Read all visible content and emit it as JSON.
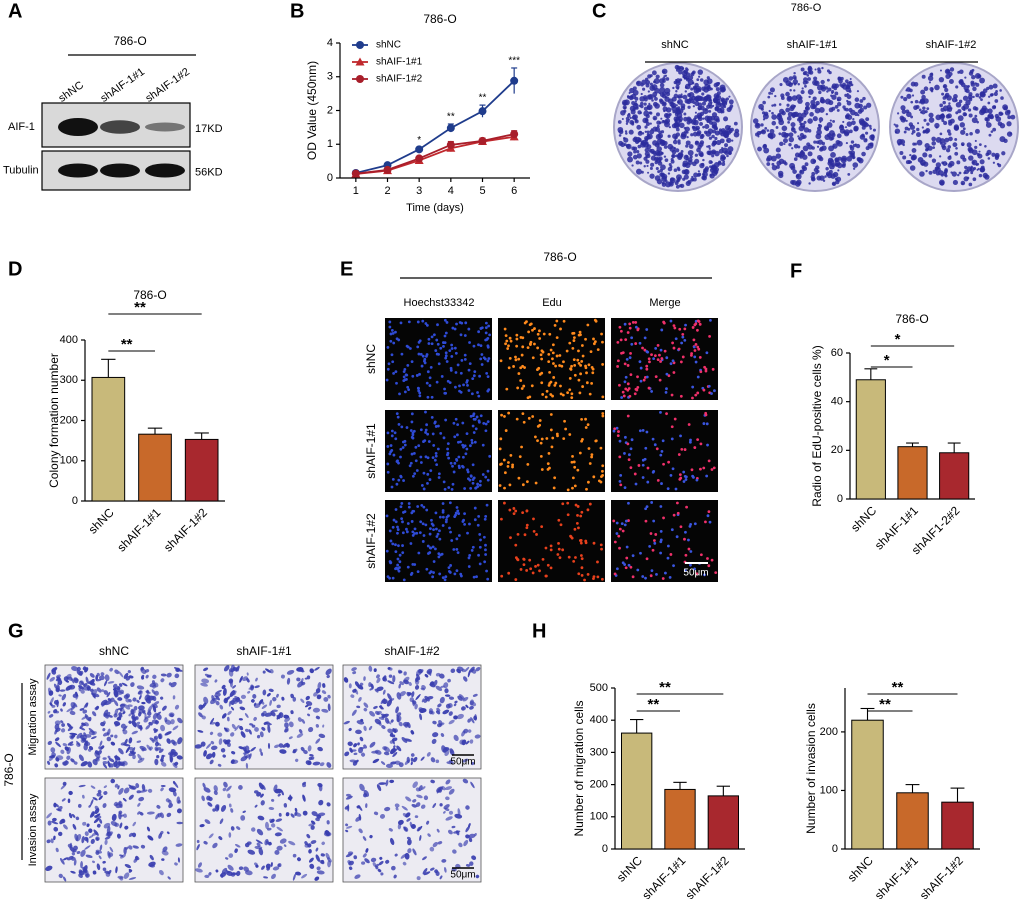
{
  "panel_labels": [
    "A",
    "B",
    "C",
    "D",
    "E",
    "F",
    "G",
    "H"
  ],
  "blot": {
    "cell_line": "786-O",
    "lanes": [
      "shNC",
      "shAIF-1#1",
      "shAIF-1#2"
    ],
    "rows": [
      {
        "protein": "AIF-1",
        "size": "17KD"
      },
      {
        "protein": "Tubulin",
        "size": "56KD"
      }
    ]
  },
  "colony": {
    "cell_line": "786-O",
    "groups": [
      "shNC",
      "shAIF-1#1",
      "shAIF-1#2"
    ]
  },
  "edu": {
    "cell_line": "786-O",
    "channels": [
      "Hoechst33342",
      "Edu",
      "Merge"
    ],
    "groups": [
      "shNC",
      "shAIF-1#1",
      "shAIF-1#2"
    ],
    "scale_bar": "50μm"
  },
  "transwell": {
    "cell_line": "786-O",
    "groups": [
      "shNC",
      "shAIF-1#1",
      "shAIF-1#2"
    ],
    "assays": [
      "Migration assay",
      "Invasion assay"
    ],
    "scale_bars": [
      "50μm",
      "50μm"
    ]
  },
  "chart_data": [
    {
      "type": "line",
      "title": "786-O",
      "xlabel": "Time (days)",
      "ylabel": "OD Value (450nm)",
      "x": [
        1,
        2,
        3,
        4,
        5,
        6
      ],
      "xlim": [
        0.5,
        6.5
      ],
      "xticks": [
        1,
        2,
        3,
        4,
        5,
        6
      ],
      "ylim": [
        0,
        4
      ],
      "yticks": [
        0,
        1,
        2,
        3,
        4
      ],
      "legend": "top-left",
      "series": [
        {
          "name": "shNC",
          "color": "#1f3c8c",
          "marker": "circle",
          "values": [
            0.15,
            0.38,
            0.85,
            1.48,
            1.98,
            2.88
          ],
          "errors": [
            0.03,
            0.04,
            0.06,
            0.12,
            0.18,
            0.38
          ]
        },
        {
          "name": "shAIF-1#1",
          "color": "#c0282d",
          "marker": "triangle",
          "values": [
            0.12,
            0.22,
            0.52,
            0.88,
            1.08,
            1.22
          ],
          "errors": [
            0.03,
            0.03,
            0.05,
            0.1,
            0.08,
            0.1
          ]
        },
        {
          "name": "shAIF-1#2",
          "color": "#a81e2a",
          "marker": "circle",
          "values": [
            0.13,
            0.24,
            0.58,
            0.98,
            1.1,
            1.3
          ],
          "errors": [
            0.03,
            0.03,
            0.05,
            0.1,
            0.08,
            0.1
          ]
        }
      ],
      "annotations": [
        null,
        null,
        "*",
        "**",
        "**",
        "***"
      ]
    },
    {
      "type": "bar",
      "title": "786-O",
      "ylabel": "Colony formation number",
      "categories": [
        "shNC",
        "shAIF-1#1",
        "shAIF-1#2"
      ],
      "values": [
        307,
        166,
        153
      ],
      "errors": [
        45,
        15,
        16
      ],
      "colors": [
        "#c8b97a",
        "#c8692a",
        "#a8282e"
      ],
      "ylim": [
        0,
        400
      ],
      "yticks": [
        0,
        100,
        200,
        300,
        400
      ],
      "significance": [
        "**",
        "**"
      ]
    },
    {
      "type": "bar",
      "title": "786-O",
      "ylabel": "Radio of EdU-positive cells %)",
      "categories": [
        "shNC",
        "shAIF-1#1",
        "shAIF1-2#2"
      ],
      "values": [
        49,
        21.5,
        19
      ],
      "errors": [
        4.5,
        1.5,
        4
      ],
      "colors": [
        "#c8b97a",
        "#c8692a",
        "#a8282e"
      ],
      "ylim": [
        0,
        60
      ],
      "yticks": [
        0,
        20,
        40,
        60
      ],
      "significance": [
        "*",
        "*"
      ]
    },
    {
      "type": "bar",
      "ylabel": "Number of migration cells",
      "categories": [
        "shNC",
        "shAIF-1#1",
        "shAIF-1#2"
      ],
      "values": [
        360,
        185,
        165
      ],
      "errors": [
        42,
        22,
        30
      ],
      "colors": [
        "#c8b97a",
        "#c8692a",
        "#a8282e"
      ],
      "ylim": [
        0,
        500
      ],
      "yticks": [
        0,
        100,
        200,
        300,
        400,
        500
      ],
      "significance": [
        "**",
        "**"
      ]
    },
    {
      "type": "bar",
      "ylabel": "Number of invasion cells",
      "categories": [
        "shNC",
        "shAIF-1#1",
        "shAIF-1#2"
      ],
      "values": [
        220,
        96,
        80
      ],
      "errors": [
        20,
        14,
        24
      ],
      "colors": [
        "#c8b97a",
        "#c8692a",
        "#a8282e"
      ],
      "ylim": [
        0,
        275
      ],
      "yticks": [
        0,
        100,
        200
      ],
      "significance": [
        "**",
        "**"
      ]
    }
  ]
}
